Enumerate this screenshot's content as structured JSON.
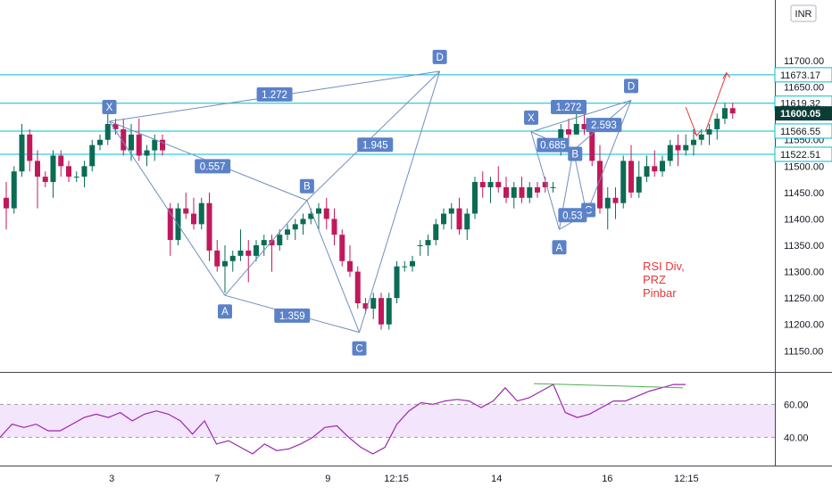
{
  "chart_data": {
    "type": "candlestick",
    "currency_button": "INR",
    "price_axis": {
      "ylim": [
        11115,
        11815
      ],
      "ticks": [
        "11700.00",
        "11650.00",
        "11550.00",
        "11500.00",
        "11450.00",
        "11400.00",
        "11350.00",
        "11300.00",
        "11250.00",
        "11200.00",
        "11150.00"
      ]
    },
    "time_axis": {
      "ticks": [
        {
          "label": "3",
          "t": 10
        },
        {
          "label": "7",
          "t": 20
        },
        {
          "label": "9",
          "t": 30.5
        },
        {
          "label": "12:15",
          "t": 37
        },
        {
          "label": "14",
          "t": 46.5
        },
        {
          "label": "16",
          "t": 57
        },
        {
          "label": "12:15",
          "t": 64.5
        }
      ]
    },
    "horizontal_levels": [
      {
        "value": 11673.17,
        "label": "11673.17"
      },
      {
        "value": 11619.32,
        "label": "11619.32"
      },
      {
        "value": 11566.55,
        "label": "11566.55"
      },
      {
        "value": 11522.51,
        "label": "11522.51"
      }
    ],
    "last_price": {
      "value": 11600.05,
      "label": "11600.05"
    },
    "candles": [
      [
        11440,
        11470,
        11380,
        11420
      ],
      [
        11420,
        11500,
        11410,
        11490
      ],
      [
        11490,
        11580,
        11480,
        11560
      ],
      [
        11560,
        11570,
        11490,
        11510
      ],
      [
        11510,
        11530,
        11420,
        11480
      ],
      [
        11480,
        11490,
        11460,
        11470
      ],
      [
        11470,
        11530,
        11440,
        11520
      ],
      [
        11520,
        11530,
        11480,
        11500
      ],
      [
        11500,
        11510,
        11470,
        11480
      ],
      [
        11480,
        11490,
        11470,
        11480
      ],
      [
        11480,
        11510,
        11460,
        11500
      ],
      [
        11500,
        11550,
        11490,
        11540
      ],
      [
        11540,
        11560,
        11530,
        11550
      ],
      [
        11550,
        11600,
        11540,
        11580
      ],
      [
        11580,
        11590,
        11560,
        11570
      ],
      [
        11570,
        11590,
        11520,
        11530
      ],
      [
        11530,
        11580,
        11510,
        11560
      ],
      [
        11560,
        11590,
        11510,
        11520
      ],
      [
        11520,
        11540,
        11500,
        11530
      ],
      [
        11530,
        11560,
        11510,
        11550
      ],
      [
        11550,
        11560,
        11520,
        11530
      ],
      [
        11420,
        11430,
        11330,
        11360
      ],
      [
        11360,
        11430,
        11350,
        11420
      ],
      [
        11420,
        11450,
        11400,
        11410
      ],
      [
        11410,
        11440,
        11380,
        11390
      ],
      [
        11390,
        11440,
        11380,
        11430
      ],
      [
        11430,
        11450,
        11320,
        11340
      ],
      [
        11340,
        11360,
        11300,
        11310
      ],
      [
        11310,
        11350,
        11260,
        11320
      ],
      [
        11320,
        11340,
        11300,
        11330
      ],
      [
        11330,
        11380,
        11320,
        11340
      ],
      [
        11340,
        11360,
        11280,
        11330
      ],
      [
        11330,
        11360,
        11320,
        11350
      ],
      [
        11350,
        11370,
        11330,
        11360
      ],
      [
        11360,
        11370,
        11300,
        11350
      ],
      [
        11350,
        11380,
        11340,
        11370
      ],
      [
        11370,
        11390,
        11360,
        11380
      ],
      [
        11380,
        11400,
        11360,
        11390
      ],
      [
        11390,
        11410,
        11370,
        11400
      ],
      [
        11400,
        11420,
        11390,
        11410
      ],
      [
        11410,
        11430,
        11380,
        11420
      ],
      [
        11420,
        11440,
        11380,
        11400
      ],
      [
        11400,
        11420,
        11350,
        11370
      ],
      [
        11370,
        11380,
        11310,
        11320
      ],
      [
        11320,
        11350,
        11290,
        11300
      ],
      [
        11300,
        11310,
        11230,
        11240
      ],
      [
        11240,
        11250,
        11220,
        11230
      ],
      [
        11230,
        11260,
        11210,
        11250
      ],
      [
        11250,
        11260,
        11190,
        11200
      ],
      [
        11200,
        11260,
        11190,
        11250
      ],
      [
        11250,
        11320,
        11240,
        11310
      ],
      [
        11310,
        11320,
        11300,
        11310
      ],
      [
        11310,
        11330,
        11300,
        11320
      ],
      [
        11350,
        11360,
        11330,
        11350
      ],
      [
        11350,
        11370,
        11330,
        11360
      ],
      [
        11360,
        11400,
        11350,
        11390
      ],
      [
        11390,
        11420,
        11380,
        11410
      ],
      [
        11410,
        11430,
        11380,
        11420
      ],
      [
        11420,
        11440,
        11370,
        11380
      ],
      [
        11380,
        11420,
        11360,
        11410
      ],
      [
        11410,
        11480,
        11400,
        11470
      ],
      [
        11470,
        11490,
        11440,
        11460
      ],
      [
        11460,
        11480,
        11430,
        11470
      ],
      [
        11470,
        11500,
        11450,
        11460
      ],
      [
        11460,
        11480,
        11430,
        11440
      ],
      [
        11440,
        11470,
        11420,
        11460
      ],
      [
        11460,
        11480,
        11430,
        11440
      ],
      [
        11440,
        11470,
        11430,
        11460
      ],
      [
        11460,
        11470,
        11440,
        11450
      ],
      [
        11470,
        11480,
        11450,
        11460
      ],
      [
        11460,
        11470,
        11450,
        11460
      ],
      [
        11540,
        11580,
        11520,
        11570
      ],
      [
        11570,
        11590,
        11550,
        11560
      ],
      [
        11560,
        11600,
        11560,
        11580
      ],
      [
        11580,
        11610,
        11560,
        11570
      ],
      [
        11570,
        11580,
        11500,
        11510
      ],
      [
        11510,
        11540,
        11410,
        11420
      ],
      [
        11420,
        11460,
        11380,
        11440
      ],
      [
        11440,
        11460,
        11400,
        11430
      ],
      [
        11430,
        11520,
        11420,
        11510
      ],
      [
        11510,
        11540,
        11440,
        11450
      ],
      [
        11450,
        11510,
        11440,
        11480
      ],
      [
        11480,
        11520,
        11470,
        11500
      ],
      [
        11500,
        11530,
        11480,
        11490
      ],
      [
        11490,
        11520,
        11480,
        11510
      ],
      [
        11510,
        11550,
        11500,
        11540
      ],
      [
        11540,
        11560,
        11500,
        11530
      ],
      [
        11530,
        11560,
        11520,
        11540
      ],
      [
        11540,
        11570,
        11520,
        11550
      ],
      [
        11550,
        11570,
        11540,
        11560
      ],
      [
        11560,
        11580,
        11540,
        11570
      ],
      [
        11570,
        11600,
        11550,
        11590
      ],
      [
        11590,
        11620,
        11580,
        11610
      ],
      [
        11610,
        11620,
        11590,
        11600
      ]
    ],
    "annotations": {
      "labels": [
        "X",
        "A",
        "B",
        "C",
        "D"
      ],
      "ratios": [
        "1.272",
        "0.557",
        "1.945",
        "1.359",
        "1.272",
        "2.593",
        "0.53",
        "0.685"
      ],
      "note_lines": [
        "RSI Div,",
        "PRZ",
        "Pinbar"
      ]
    },
    "rsi": {
      "ylim": [
        24,
        78
      ],
      "ticks": [
        "60.00",
        "40.00"
      ],
      "band": [
        40,
        60
      ],
      "values": [
        40,
        48,
        46,
        48,
        44,
        44,
        48,
        52,
        54,
        52,
        55,
        50,
        54,
        56,
        54,
        50,
        42,
        50,
        36,
        38,
        34,
        30,
        36,
        32,
        33,
        36,
        40,
        46,
        47,
        40,
        34,
        30,
        34,
        48,
        56,
        61,
        60,
        62,
        63,
        62,
        58,
        62,
        70,
        62,
        64,
        68,
        72,
        55,
        52,
        54,
        58,
        62,
        62,
        65,
        68,
        70,
        72,
        72
      ],
      "divergence": [
        72,
        70
      ]
    }
  }
}
